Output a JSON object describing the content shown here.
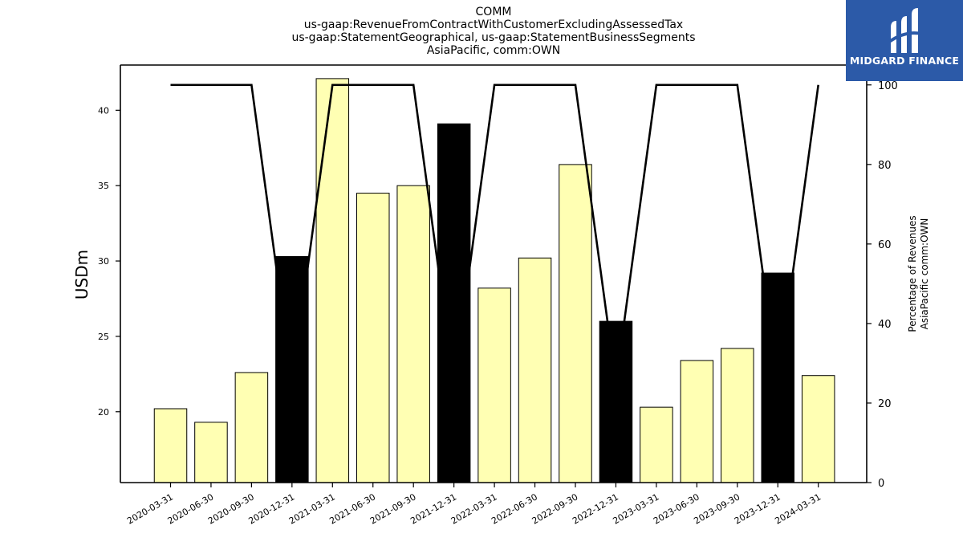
{
  "titles": {
    "line1": "COMM",
    "line2": "us-gaap:RevenueFromContractWithCustomerExcludingAssessedTax",
    "line3": "us-gaap:StatementGeographical, us-gaap:StatementBusinessSegments",
    "line4": "AsiaPacific, comm:OWN"
  },
  "logo": {
    "text": "MIDGARD FINANCE",
    "icon": "midgard-logo-icon",
    "color": "#2c5aa8"
  },
  "colors": {
    "bar_normal": "#ffffb3",
    "bar_highlight": "#000000",
    "line": "#000000"
  },
  "chart_data": {
    "type": "bar",
    "categories": [
      "2020-03-31",
      "2020-06-30",
      "2020-09-30",
      "2020-12-31",
      "2021-03-31",
      "2021-06-30",
      "2021-09-30",
      "2021-12-31",
      "2022-03-31",
      "2022-06-30",
      "2022-09-30",
      "2022-12-31",
      "2023-03-31",
      "2023-06-30",
      "2023-09-30",
      "2023-12-31",
      "2024-03-31"
    ],
    "values": [
      20.2,
      19.3,
      22.6,
      30.3,
      42.1,
      34.5,
      35.0,
      39.1,
      28.2,
      30.2,
      36.4,
      26.0,
      20.3,
      23.4,
      24.2,
      29.2,
      22.4
    ],
    "highlighted": [
      false,
      false,
      false,
      true,
      false,
      false,
      false,
      true,
      false,
      false,
      false,
      true,
      false,
      false,
      false,
      true,
      false
    ],
    "ylabel": "USDm",
    "ylim": [
      15.3,
      43.0
    ],
    "yticks": [
      20,
      25,
      30,
      35,
      40
    ],
    "secondary_axis": {
      "type": "line",
      "label_line1": "Percentage of Revenues",
      "label_line2": "AsiaPacific comm:OWN",
      "values": [
        100,
        100,
        100,
        25,
        100,
        100,
        100,
        25,
        100,
        100,
        100,
        25,
        100,
        100,
        100,
        25,
        100
      ],
      "ylim": [
        0,
        105
      ],
      "yticks": [
        0,
        20,
        40,
        60,
        80,
        100
      ]
    },
    "grid": false
  }
}
